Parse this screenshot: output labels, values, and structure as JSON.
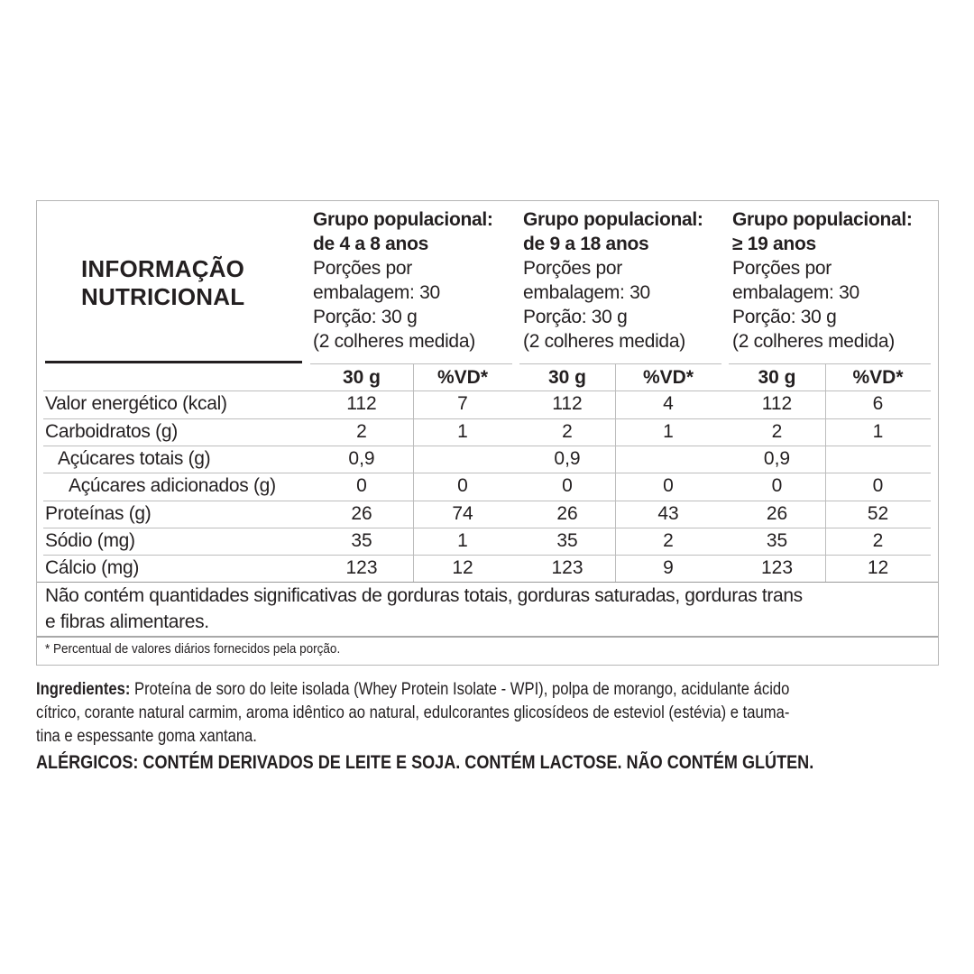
{
  "title": [
    "INFORMAÇÃO",
    "NUTRICIONAL"
  ],
  "groups": [
    {
      "heading1": "Grupo populacional:",
      "heading2": "de 4 a 8 anos",
      "servings1": "Porções por",
      "servings2": "embalagem: 30",
      "portion": "Porção: 30 g",
      "measure": "(2 colheres medida)"
    },
    {
      "heading1": "Grupo populacional:",
      "heading2": "de 9 a 18 anos",
      "servings1": "Porções por",
      "servings2": "embalagem: 30",
      "portion": "Porção: 30 g",
      "measure": "(2 colheres medida)"
    },
    {
      "heading1": "Grupo populacional:",
      "heading2": "≥ 19 anos",
      "servings1": "Porções por",
      "servings2": "embalagem: 30",
      "portion": "Porção: 30 g",
      "measure": "(2 colheres medida)"
    }
  ],
  "col_headers": [
    "30 g",
    "%VD*"
  ],
  "rows": [
    {
      "label": "Valor energético (kcal)",
      "values": [
        "112",
        "7",
        "112",
        "4",
        "112",
        "6"
      ]
    },
    {
      "label": "Carboidratos (g)",
      "values": [
        "2",
        "1",
        "2",
        "1",
        "2",
        "1"
      ]
    },
    {
      "label": "Açúcares totais (g)",
      "values": [
        "0,9",
        "",
        "0,9",
        "",
        "0,9",
        ""
      ]
    },
    {
      "label": "Açúcares adicionados (g)",
      "values": [
        "0",
        "0",
        "0",
        "0",
        "0",
        "0"
      ]
    },
    {
      "label": "Proteínas (g)",
      "values": [
        "26",
        "74",
        "26",
        "43",
        "26",
        "52"
      ]
    },
    {
      "label": "Sódio (mg)",
      "values": [
        "35",
        "1",
        "35",
        "2",
        "35",
        "2"
      ]
    },
    {
      "label": "Cálcio (mg)",
      "values": [
        "123",
        "12",
        "123",
        "9",
        "123",
        "12"
      ]
    }
  ],
  "note": [
    "Não contém quantidades significativas de gorduras totais, gorduras saturadas, gorduras trans",
    "e fibras alimentares."
  ],
  "footnote": "* Percentual de valores diários fornecidos pela porção.",
  "ingredients": {
    "label": "Ingredientes:",
    "line1": " Proteína de soro do leite isolada (Whey Protein Isolate - WPI), polpa de morango, acidulante ácido",
    "line2": "cítrico, corante natural carmim, aroma idêntico ao natural, edulcorantes glicosídeos de esteviol (estévia) e tauma-",
    "line3": "tina e espessante goma xantana."
  },
  "allergens": "ALÉRGICOS: CONTÉM DERIVADOS DE LEITE E SOJA. CONTÉM LACTOSE. NÃO CONTÉM GLÚTEN."
}
